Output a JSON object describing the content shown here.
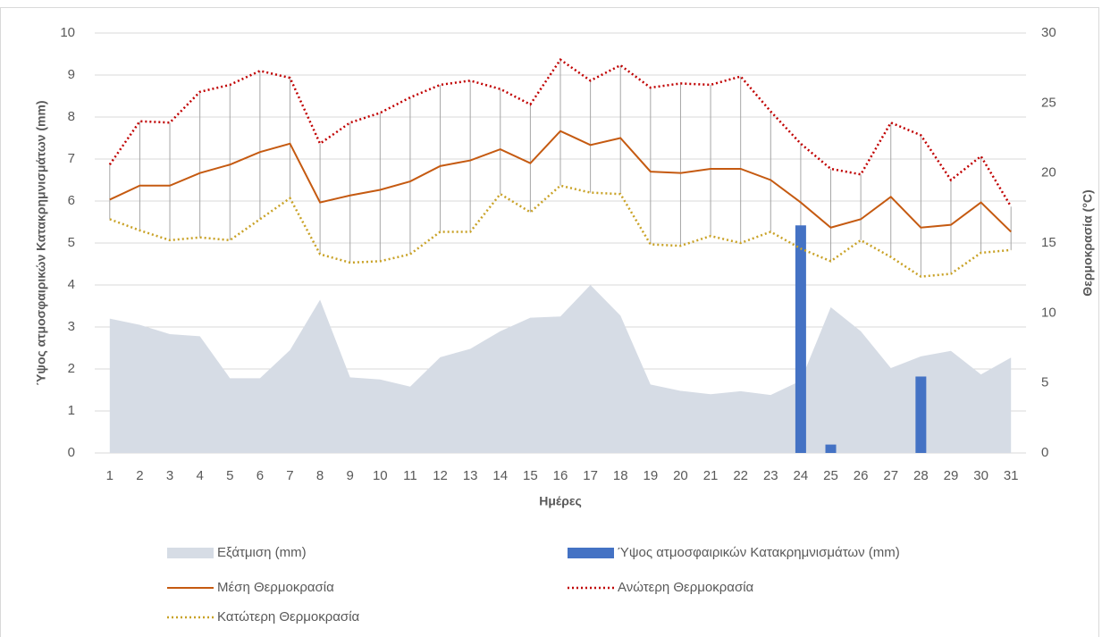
{
  "chart_data": {
    "type": "combo",
    "x_label": "Ημέρες",
    "y_label": "Ύψος ατμοσφαιρικών Κατακρημνισμάτων (mm)",
    "y2_label": "Θερμοκρασία (°C)",
    "categories": [
      "1",
      "2",
      "3",
      "4",
      "5",
      "6",
      "7",
      "8",
      "9",
      "10",
      "11",
      "12",
      "13",
      "14",
      "15",
      "16",
      "17",
      "18",
      "19",
      "20",
      "21",
      "22",
      "23",
      "24",
      "25",
      "26",
      "27",
      "28",
      "29",
      "30",
      "31"
    ],
    "ylim": [
      0,
      10
    ],
    "yticks": [
      0,
      1,
      2,
      3,
      4,
      5,
      6,
      7,
      8,
      9,
      10
    ],
    "y2lim": [
      0,
      30
    ],
    "y2ticks": [
      0,
      5,
      10,
      15,
      20,
      25,
      30
    ],
    "grid": true,
    "high_low_lines": true,
    "legend": "bottom",
    "series": [
      {
        "name": "Εξάτμιση (mm)",
        "type": "area",
        "color": "#d6dce5",
        "values": [
          3.2,
          3.05,
          2.83,
          2.78,
          1.78,
          1.78,
          2.45,
          3.65,
          1.8,
          1.75,
          1.58,
          2.28,
          2.48,
          2.9,
          3.22,
          3.25,
          4.0,
          3.27,
          1.63,
          1.48,
          1.4,
          1.47,
          1.38,
          1.72,
          3.47,
          2.9,
          2.02,
          2.3,
          2.43,
          1.87,
          2.27
        ]
      },
      {
        "name": "Ύψος ατμοσφαιρικών Κατακρημνισμάτων (mm)",
        "type": "bar",
        "color": "#4472c4",
        "values": [
          0,
          0,
          0,
          0,
          0,
          0,
          0,
          0,
          0,
          0,
          0,
          0,
          0,
          0,
          0,
          0,
          0,
          0,
          0,
          0,
          0,
          0,
          0,
          5.42,
          0.2,
          0,
          0,
          1.82,
          0,
          0,
          0
        ]
      },
      {
        "name": "Μέση Θερμοκρασία",
        "type": "line",
        "style": "solid",
        "axis": "y2",
        "color": "#c55a11",
        "values": [
          18.1,
          19.1,
          19.1,
          20.0,
          20.6,
          21.5,
          22.1,
          17.9,
          18.4,
          18.8,
          19.4,
          20.5,
          20.9,
          21.7,
          20.7,
          23.0,
          22.0,
          22.5,
          20.1,
          20.0,
          20.3,
          20.3,
          19.5,
          17.9,
          16.1,
          16.7,
          18.3,
          16.1,
          16.3,
          17.9,
          15.8
        ]
      },
      {
        "name": "Ανώτερη Θερμοκρασία",
        "type": "line",
        "style": "dotted",
        "axis": "y2",
        "color": "#c00000",
        "values": [
          20.6,
          23.7,
          23.6,
          25.8,
          26.3,
          27.3,
          26.8,
          22.1,
          23.6,
          24.3,
          25.4,
          26.3,
          26.6,
          26.0,
          24.9,
          28.1,
          26.6,
          27.7,
          26.1,
          26.4,
          26.3,
          26.9,
          24.4,
          22.1,
          20.3,
          19.9,
          23.6,
          22.7,
          19.5,
          21.2,
          17.6
        ]
      },
      {
        "name": "Κατώτερη Θερμοκρασία",
        "type": "line",
        "style": "dotted",
        "axis": "y2",
        "color": "#c9a227",
        "values": [
          16.7,
          15.9,
          15.2,
          15.4,
          15.2,
          16.7,
          18.2,
          14.2,
          13.6,
          13.7,
          14.2,
          15.8,
          15.8,
          18.5,
          17.2,
          19.1,
          18.6,
          18.5,
          14.9,
          14.8,
          15.5,
          15.0,
          15.8,
          14.6,
          13.7,
          15.2,
          14.0,
          12.6,
          12.8,
          14.3,
          14.5
        ]
      }
    ]
  }
}
